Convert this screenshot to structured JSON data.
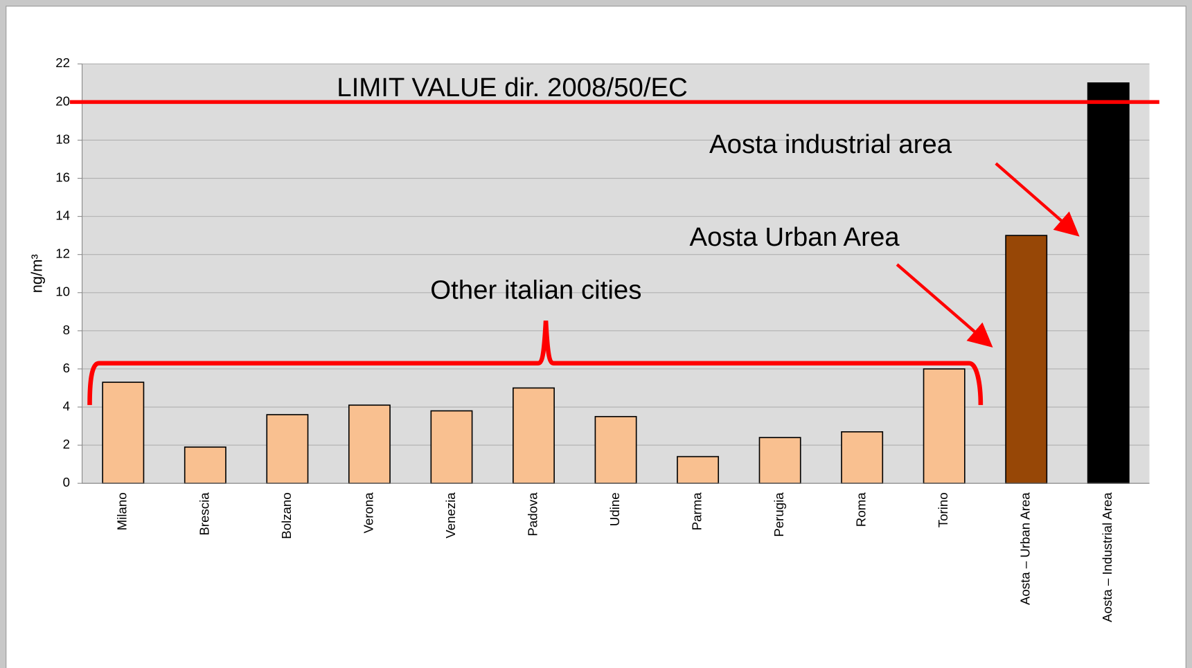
{
  "chart_data": {
    "type": "bar",
    "categories": [
      "Milano",
      "Brescia",
      "Bolzano",
      "Verona",
      "Venezia",
      "Padova",
      "Udine",
      "Parma",
      "Perugia",
      "Roma",
      "Torino",
      "Aosta – Urban Area",
      "Aosta – Industrial Area"
    ],
    "values": [
      5.3,
      1.9,
      3.6,
      4.1,
      3.8,
      5.0,
      3.5,
      1.4,
      2.4,
      2.7,
      6.0,
      13.0,
      21.0
    ],
    "colors": [
      "#f9c090",
      "#f9c090",
      "#f9c090",
      "#f9c090",
      "#f9c090",
      "#f9c090",
      "#f9c090",
      "#f9c090",
      "#f9c090",
      "#f9c090",
      "#f9c090",
      "#974706",
      "#000000"
    ],
    "ylabel": "ng/m³",
    "ylim": [
      0,
      22
    ],
    "yticks": [
      0,
      2,
      4,
      6,
      8,
      10,
      12,
      14,
      16,
      18,
      20,
      22
    ],
    "grid": true,
    "limit_line": {
      "label": "LIMIT VALUE dir. 2008/50/EC",
      "value": 20,
      "color": "#ff0000"
    },
    "annotations": [
      "Other italian cities",
      "Aosta Urban Area",
      "Aosta industrial area"
    ]
  }
}
